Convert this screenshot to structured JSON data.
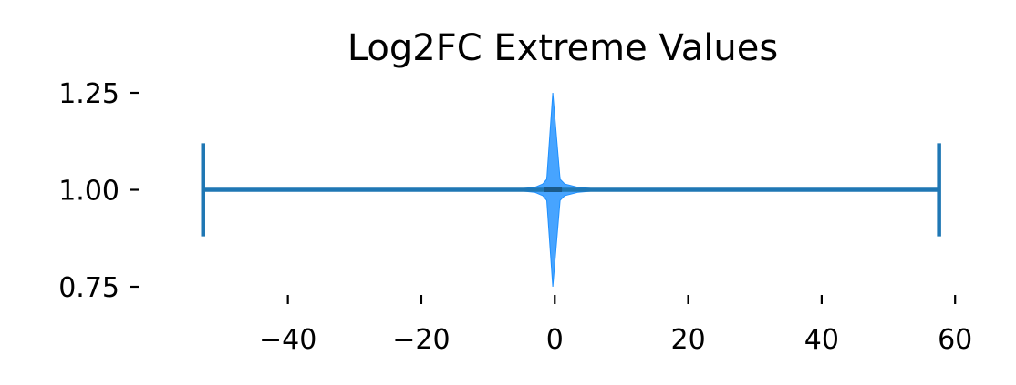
{
  "chart_data": {
    "type": "violin",
    "title": "Log2FC Extreme Values",
    "xlabel": "",
    "ylabel": "",
    "xlim": [
      -59.5,
      63.8
    ],
    "ylim": [
      0.71,
      1.296
    ],
    "xticks": [
      -40,
      -20,
      0,
      20,
      40,
      60
    ],
    "xtick_labels": [
      "−40",
      "−20",
      "0",
      "20",
      "40",
      "60"
    ],
    "yticks": [
      0.75,
      1.0,
      1.25
    ],
    "ytick_labels": [
      "0.75",
      "1.00",
      "1.25"
    ],
    "grid": false,
    "spines": false,
    "violin": {
      "position": 1.0,
      "min": -52.7,
      "max": 57.6,
      "median": -0.3,
      "half_width": 0.25,
      "density": [
        [
          -52.7,
          0.0
        ],
        [
          -6.0,
          0.005
        ],
        [
          -3.0,
          0.025
        ],
        [
          -1.8,
          0.06
        ],
        [
          -1.2,
          0.11
        ],
        [
          -0.3,
          1.0
        ],
        [
          0.8,
          0.11
        ],
        [
          1.5,
          0.06
        ],
        [
          3.5,
          0.025
        ],
        [
          7.0,
          0.005
        ],
        [
          57.6,
          0.0
        ]
      ],
      "cap_half_height": 0.12,
      "body_color": "#1E90FF",
      "line_color": "#1F77B4"
    }
  }
}
